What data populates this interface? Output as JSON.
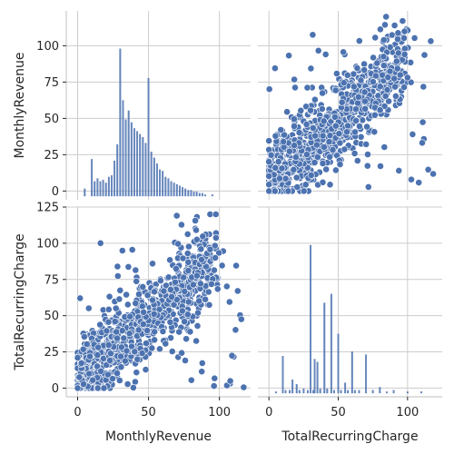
{
  "chart_data": {
    "type": "pairplot",
    "variables": [
      "MonthlyRevenue",
      "TotalRecurringCharge"
    ],
    "color": "#4c72b0",
    "grid": true,
    "panels": [
      {
        "row": 0,
        "col": 0,
        "type": "histogram",
        "variable": "MonthlyRevenue",
        "xlim": [
          -8,
          122
        ],
        "bins": [
          {
            "x": 5,
            "h": 0.05
          },
          {
            "x": 10,
            "h": 0.25
          },
          {
            "x": 12,
            "h": 0.1
          },
          {
            "x": 14,
            "h": 0.12
          },
          {
            "x": 16,
            "h": 0.1
          },
          {
            "x": 18,
            "h": 0.11
          },
          {
            "x": 20,
            "h": 0.09
          },
          {
            "x": 22,
            "h": 0.13
          },
          {
            "x": 24,
            "h": 0.14
          },
          {
            "x": 26,
            "h": 0.24
          },
          {
            "x": 28,
            "h": 0.35
          },
          {
            "x": 30,
            "h": 1.0
          },
          {
            "x": 32,
            "h": 0.65
          },
          {
            "x": 34,
            "h": 0.52
          },
          {
            "x": 36,
            "h": 0.58
          },
          {
            "x": 38,
            "h": 0.5
          },
          {
            "x": 40,
            "h": 0.46
          },
          {
            "x": 42,
            "h": 0.44
          },
          {
            "x": 44,
            "h": 0.42
          },
          {
            "x": 46,
            "h": 0.4
          },
          {
            "x": 48,
            "h": 0.36
          },
          {
            "x": 50,
            "h": 0.8
          },
          {
            "x": 52,
            "h": 0.3
          },
          {
            "x": 54,
            "h": 0.26
          },
          {
            "x": 56,
            "h": 0.22
          },
          {
            "x": 58,
            "h": 0.18
          },
          {
            "x": 60,
            "h": 0.17
          },
          {
            "x": 62,
            "h": 0.13
          },
          {
            "x": 64,
            "h": 0.12
          },
          {
            "x": 66,
            "h": 0.1
          },
          {
            "x": 68,
            "h": 0.09
          },
          {
            "x": 70,
            "h": 0.08
          },
          {
            "x": 72,
            "h": 0.07
          },
          {
            "x": 74,
            "h": 0.06
          },
          {
            "x": 76,
            "h": 0.05
          },
          {
            "x": 78,
            "h": 0.04
          },
          {
            "x": 80,
            "h": 0.04
          },
          {
            "x": 82,
            "h": 0.03
          },
          {
            "x": 84,
            "h": 0.03
          },
          {
            "x": 86,
            "h": 0.02
          },
          {
            "x": 88,
            "h": 0.02
          },
          {
            "x": 90,
            "h": 0.01
          },
          {
            "x": 95,
            "h": 0.01
          }
        ]
      },
      {
        "row": 0,
        "col": 1,
        "type": "scatter",
        "x_variable": "TotalRecurringCharge",
        "y_variable": "MonthlyRevenue",
        "xlim": [
          -8,
          125
        ],
        "ylim": [
          -6,
          124
        ],
        "x_range": [
          0,
          120
        ],
        "y_range": [
          0,
          120
        ],
        "trend": "positive"
      },
      {
        "row": 1,
        "col": 0,
        "type": "scatter",
        "x_variable": "MonthlyRevenue",
        "y_variable": "TotalRecurringCharge",
        "xlim": [
          -8,
          122
        ],
        "ylim": [
          -6,
          125
        ],
        "x_range": [
          0,
          118
        ],
        "y_range": [
          0,
          120
        ],
        "trend": "positive"
      },
      {
        "row": 1,
        "col": 1,
        "type": "histogram",
        "variable": "TotalRecurringCharge",
        "xlim": [
          -8,
          125
        ],
        "bins": [
          {
            "x": 5,
            "h": 0.01
          },
          {
            "x": 10,
            "h": 0.25
          },
          {
            "x": 12,
            "h": 0.02
          },
          {
            "x": 15,
            "h": 0.02
          },
          {
            "x": 17,
            "h": 0.09
          },
          {
            "x": 20,
            "h": 0.06
          },
          {
            "x": 22,
            "h": 0.02
          },
          {
            "x": 25,
            "h": 0.03
          },
          {
            "x": 28,
            "h": 0.02
          },
          {
            "x": 30,
            "h": 1.0
          },
          {
            "x": 32,
            "h": 0.02
          },
          {
            "x": 33,
            "h": 0.23
          },
          {
            "x": 35,
            "h": 0.21
          },
          {
            "x": 37,
            "h": 0.03
          },
          {
            "x": 40,
            "h": 0.61
          },
          {
            "x": 42,
            "h": 0.03
          },
          {
            "x": 45,
            "h": 0.67
          },
          {
            "x": 47,
            "h": 0.02
          },
          {
            "x": 50,
            "h": 0.4
          },
          {
            "x": 52,
            "h": 0.02
          },
          {
            "x": 55,
            "h": 0.07
          },
          {
            "x": 57,
            "h": 0.02
          },
          {
            "x": 60,
            "h": 0.28
          },
          {
            "x": 62,
            "h": 0.02
          },
          {
            "x": 65,
            "h": 0.02
          },
          {
            "x": 70,
            "h": 0.26
          },
          {
            "x": 75,
            "h": 0.02
          },
          {
            "x": 80,
            "h": 0.04
          },
          {
            "x": 85,
            "h": 0.01
          },
          {
            "x": 90,
            "h": 0.02
          },
          {
            "x": 100,
            "h": 0.01
          },
          {
            "x": 110,
            "h": 0.01
          }
        ]
      }
    ],
    "axes": {
      "row0_ylabel": "MonthlyRevenue",
      "row1_ylabel": "TotalRecurringCharge",
      "col0_xlabel": "MonthlyRevenue",
      "col1_xlabel": "TotalRecurringCharge",
      "row0_yticks": [
        0,
        25,
        50,
        75,
        100
      ],
      "row1_yticks": [
        0,
        25,
        50,
        75,
        100,
        125
      ],
      "col0_xticks": [
        0,
        50,
        100
      ],
      "col1_xticks": [
        0,
        50,
        100
      ]
    }
  }
}
